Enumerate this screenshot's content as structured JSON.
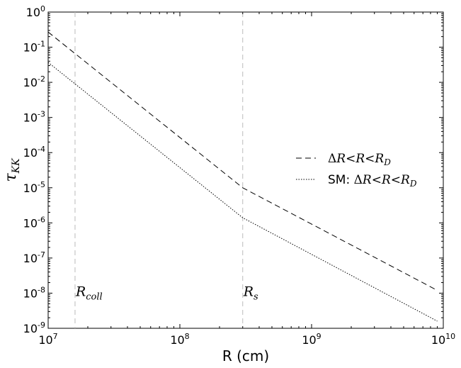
{
  "chart_data": {
    "type": "line",
    "xscale": "log",
    "yscale": "log",
    "xlim": [
      10000000,
      10000000000
    ],
    "ylim": [
      1e-09,
      1
    ],
    "xlabel": "R (cm)",
    "ylabel": "τ_KK",
    "ylabel_main": "τ",
    "ylabel_sub": "KK",
    "x_ticks": [
      {
        "base": "10",
        "exp": "7",
        "value": 10000000
      },
      {
        "base": "10",
        "exp": "8",
        "value": 100000000
      },
      {
        "base": "10",
        "exp": "9",
        "value": 1000000000
      },
      {
        "base": "10",
        "exp": "10",
        "value": 10000000000
      }
    ],
    "y_ticks": [
      {
        "base": "10",
        "exp": "0",
        "value": 1
      },
      {
        "base": "10",
        "exp": "-1",
        "value": 0.1
      },
      {
        "base": "10",
        "exp": "-2",
        "value": 0.01
      },
      {
        "base": "10",
        "exp": "-3",
        "value": 0.001
      },
      {
        "base": "10",
        "exp": "-4",
        "value": 0.0001
      },
      {
        "base": "10",
        "exp": "-5",
        "value": 1e-05
      },
      {
        "base": "10",
        "exp": "-6",
        "value": 1e-06
      },
      {
        "base": "10",
        "exp": "-7",
        "value": 1e-07
      },
      {
        "base": "10",
        "exp": "-8",
        "value": 1e-08
      },
      {
        "base": "10",
        "exp": "-9",
        "value": 1e-09
      }
    ],
    "series": [
      {
        "name": "ΔR<R<R_D",
        "label_parts": {
          "prefix": "",
          "delta": "Δ",
          "r1": "R",
          "lt1": "<",
          "r2": "R",
          "lt2": "<",
          "r3": "R",
          "sub": "D"
        },
        "dash": "8,5",
        "color": "#000000",
        "x": [
          10000000,
          300000000,
          9000000000
        ],
        "y": [
          0.27,
          1e-05,
          1.2e-08
        ]
      },
      {
        "name": "SM: ΔR<R<R_D",
        "label_parts": {
          "prefix": "SM: ",
          "delta": "Δ",
          "r1": "R",
          "lt1": "<",
          "r2": "R",
          "lt2": "<",
          "r3": "R",
          "sub": "D"
        },
        "dash": "1.5,2",
        "color": "#000000",
        "x": [
          10000000,
          300000000,
          9000000000
        ],
        "y": [
          0.037,
          1.4e-06,
          1.6e-09
        ]
      }
    ],
    "vlines": [
      {
        "x": 16000000,
        "label": "R",
        "sub": "coll",
        "label_y": 1e-08,
        "color": "#bbbbbb"
      },
      {
        "x": 300000000,
        "label": "R",
        "sub": "s",
        "label_y": 1e-08,
        "color": "#bbbbbb"
      }
    ],
    "legend": "center-right",
    "grid": false
  }
}
